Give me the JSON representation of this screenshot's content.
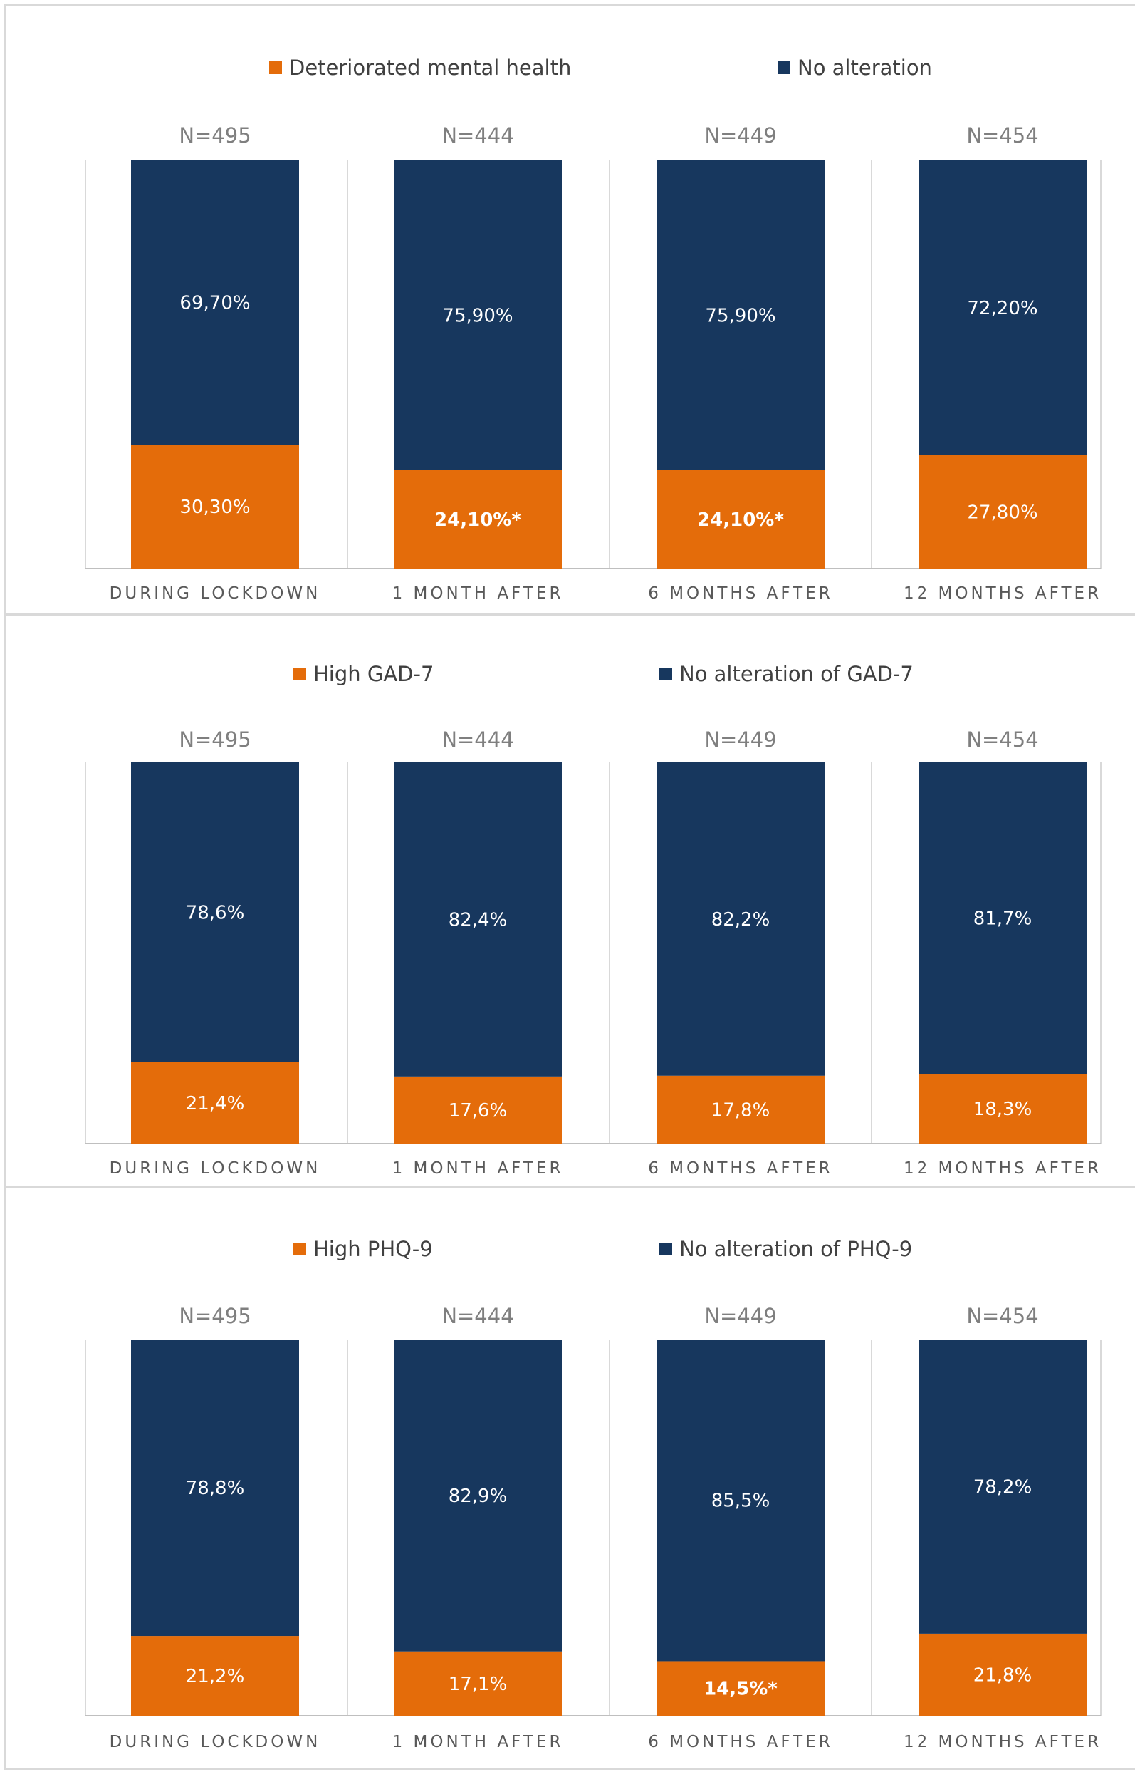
{
  "colors": {
    "deteriorated": "#E46C0A",
    "no_alteration": "#17375E",
    "divider": "#d9d9d9",
    "axis": "#bfbfbf"
  },
  "chart_data": [
    {
      "type": "bar",
      "stacked": true,
      "percent_stacked": true,
      "categories": [
        "DURING LOCKDOWN",
        "1 MONTH AFTER",
        "6 MONTHS AFTER",
        "12 MONTHS AFTER"
      ],
      "n_labels": [
        "N=495",
        "N=444",
        "N=449",
        "N=454"
      ],
      "legend": [
        "Deteriorated mental health",
        "No alteration"
      ],
      "legend_position": "top",
      "series": [
        {
          "name": "Deteriorated mental health",
          "values": [
            30.3,
            24.1,
            24.1,
            27.8
          ],
          "labels": [
            "30,30%",
            "24,10%*",
            "24,10%*",
            "27,80%"
          ],
          "bold": [
            false,
            true,
            true,
            false
          ]
        },
        {
          "name": "No alteration",
          "values": [
            69.7,
            75.9,
            75.9,
            72.2
          ],
          "labels": [
            "69,70%",
            "75,90%",
            "75,90%",
            "72,20%"
          ],
          "bold": [
            false,
            false,
            false,
            false
          ]
        }
      ],
      "ylim": [
        0,
        100
      ]
    },
    {
      "type": "bar",
      "stacked": true,
      "percent_stacked": true,
      "categories": [
        "DURING LOCKDOWN",
        "1 MONTH AFTER",
        "6 MONTHS AFTER",
        "12 MONTHS AFTER"
      ],
      "n_labels": [
        "N=495",
        "N=444",
        "N=449",
        "N=454"
      ],
      "legend": [
        "High GAD-7",
        "No alteration of GAD-7"
      ],
      "legend_position": "top",
      "series": [
        {
          "name": "High GAD-7",
          "values": [
            21.4,
            17.6,
            17.8,
            18.3
          ],
          "labels": [
            "21,4%",
            "17,6%",
            "17,8%",
            "18,3%"
          ],
          "bold": [
            false,
            false,
            false,
            false
          ]
        },
        {
          "name": "No alteration of GAD-7",
          "values": [
            78.6,
            82.4,
            82.2,
            81.7
          ],
          "labels": [
            "78,6%",
            "82,4%",
            "82,2%",
            "81,7%"
          ],
          "bold": [
            false,
            false,
            false,
            false
          ]
        }
      ],
      "ylim": [
        0,
        100
      ]
    },
    {
      "type": "bar",
      "stacked": true,
      "percent_stacked": true,
      "categories": [
        "DURING LOCKDOWN",
        "1 MONTH AFTER",
        "6 MONTHS AFTER",
        "12 MONTHS AFTER"
      ],
      "n_labels": [
        "N=495",
        "N=444",
        "N=449",
        "N=454"
      ],
      "legend": [
        "High PHQ-9",
        "No alteration of PHQ-9"
      ],
      "legend_position": "top",
      "series": [
        {
          "name": "High PHQ-9",
          "values": [
            21.2,
            17.1,
            14.5,
            21.8
          ],
          "labels": [
            "21,2%",
            "17,1%",
            "14,5%*",
            "21,8%"
          ],
          "bold": [
            false,
            false,
            true,
            false
          ]
        },
        {
          "name": "No alteration of PHQ-9",
          "values": [
            78.8,
            82.9,
            85.5,
            78.2
          ],
          "labels": [
            "78,8%",
            "82,9%",
            "85,5%",
            "78,2%"
          ],
          "bold": [
            false,
            false,
            false,
            false
          ]
        }
      ],
      "ylim": [
        0,
        100
      ]
    }
  ]
}
